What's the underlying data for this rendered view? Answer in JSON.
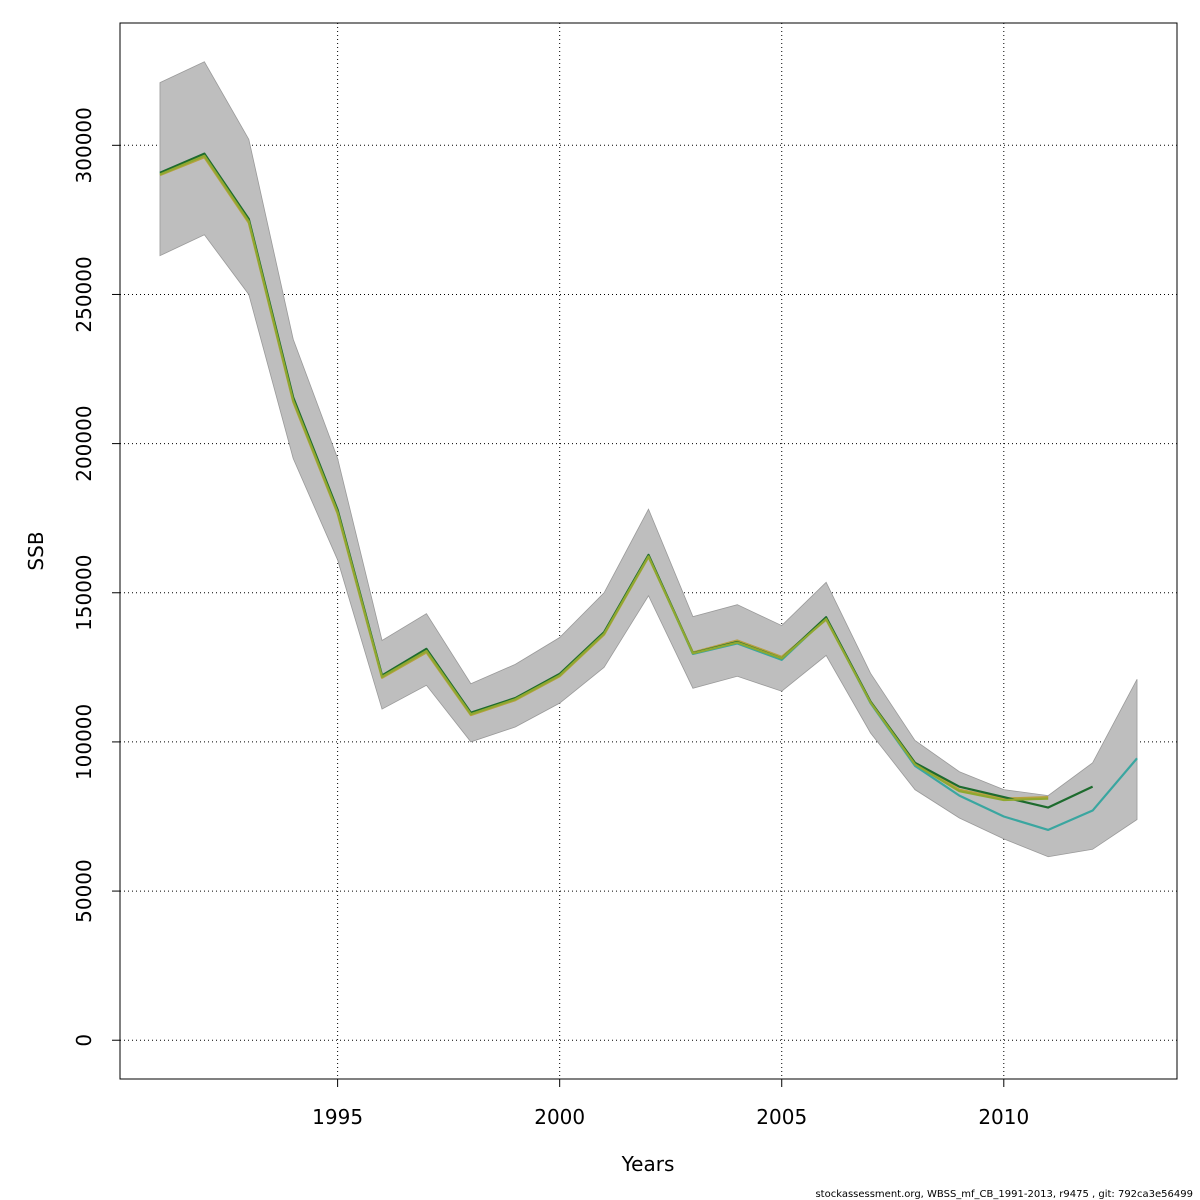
{
  "chart_data": {
    "type": "line",
    "xlabel": "Years",
    "ylabel": "SSB",
    "xlim": [
      1990.1,
      2013.9
    ],
    "ylim": [
      -13000,
      341000
    ],
    "x_ticks": [
      1995,
      2000,
      2005,
      2010
    ],
    "y_ticks": [
      0,
      50000,
      100000,
      150000,
      200000,
      250000,
      300000
    ],
    "grid": true,
    "legend": "none",
    "band": {
      "color": "#bebebe",
      "x": [
        1991,
        1992,
        1993,
        1994,
        1995,
        1996,
        1997,
        1998,
        1999,
        2000,
        2001,
        2002,
        2003,
        2004,
        2005,
        2006,
        2007,
        2008,
        2009,
        2010,
        2011,
        2012,
        2013
      ],
      "lower": [
        263000,
        270000,
        250000,
        195000,
        161000,
        111000,
        119000,
        100000,
        105000,
        113000,
        125000,
        149000,
        118000,
        122000,
        117000,
        129000,
        103000,
        84000,
        74500,
        67500,
        61500,
        64000,
        74000
      ],
      "upper": [
        321000,
        328000,
        302000,
        235000,
        195000,
        134000,
        143000,
        119500,
        126000,
        135000,
        150000,
        178000,
        142000,
        146000,
        139000,
        153500,
        123000,
        100500,
        90000,
        84000,
        82000,
        93000,
        121000
      ]
    },
    "series": [
      {
        "color": "#3aa6a0",
        "x": [
          1991,
          1992,
          1993,
          1994,
          1995,
          1996,
          1997,
          1998,
          1999,
          2000,
          2001,
          2002,
          2003,
          2004,
          2005,
          2006,
          2007,
          2008,
          2009,
          2010,
          2011,
          2012,
          2013
        ],
        "values": [
          290500,
          297000,
          275000,
          215000,
          177500,
          122000,
          131000,
          109500,
          114500,
          122500,
          136500,
          162500,
          129500,
          133000,
          127500,
          141500,
          113000,
          92000,
          82000,
          75000,
          70500,
          77000,
          94500
        ]
      },
      {
        "color": "#b8a040",
        "x": [
          1991,
          1992,
          1993,
          1994,
          1995,
          1996,
          1997,
          1998,
          1999,
          2000,
          2001,
          2002,
          2003,
          2004,
          2005,
          2006,
          2007,
          2008,
          2009,
          2010,
          2011
        ],
        "values": [
          290000,
          296000,
          274000,
          214000,
          176500,
          121500,
          130000,
          109000,
          114000,
          122000,
          136000,
          162000,
          130000,
          134000,
          128500,
          141000,
          113500,
          93000,
          84000,
          81000,
          81500
        ]
      },
      {
        "color": "#1d6b2e",
        "x": [
          1991,
          1992,
          1993,
          1994,
          1995,
          1996,
          1997,
          1998,
          1999,
          2000,
          2001,
          2002,
          2003,
          2004,
          2005,
          2006,
          2007,
          2008,
          2009,
          2010,
          2011,
          2012
        ],
        "values": [
          290800,
          297200,
          275300,
          215500,
          177800,
          122300,
          131200,
          109800,
          114700,
          122800,
          136800,
          162700,
          129800,
          133500,
          128000,
          141800,
          113500,
          93000,
          85000,
          81500,
          78000,
          85000
        ]
      },
      {
        "color": "#8fa830",
        "x": [
          1991,
          1992,
          1993,
          1994,
          1995,
          1996,
          1997,
          1998,
          1999,
          2000,
          2001,
          2002,
          2003,
          2004,
          2005,
          2006,
          2007,
          2008,
          2009,
          2010,
          2011
        ],
        "values": [
          290200,
          296500,
          274500,
          214500,
          177000,
          121800,
          130500,
          109300,
          114300,
          122300,
          136300,
          162200,
          129700,
          133300,
          128000,
          141200,
          113200,
          92500,
          83500,
          80500,
          81000
        ]
      }
    ],
    "footer": "stockassessment.org, WBSS_mf_CB_1991-2013, r9475 , git: 792ca3e56499"
  }
}
